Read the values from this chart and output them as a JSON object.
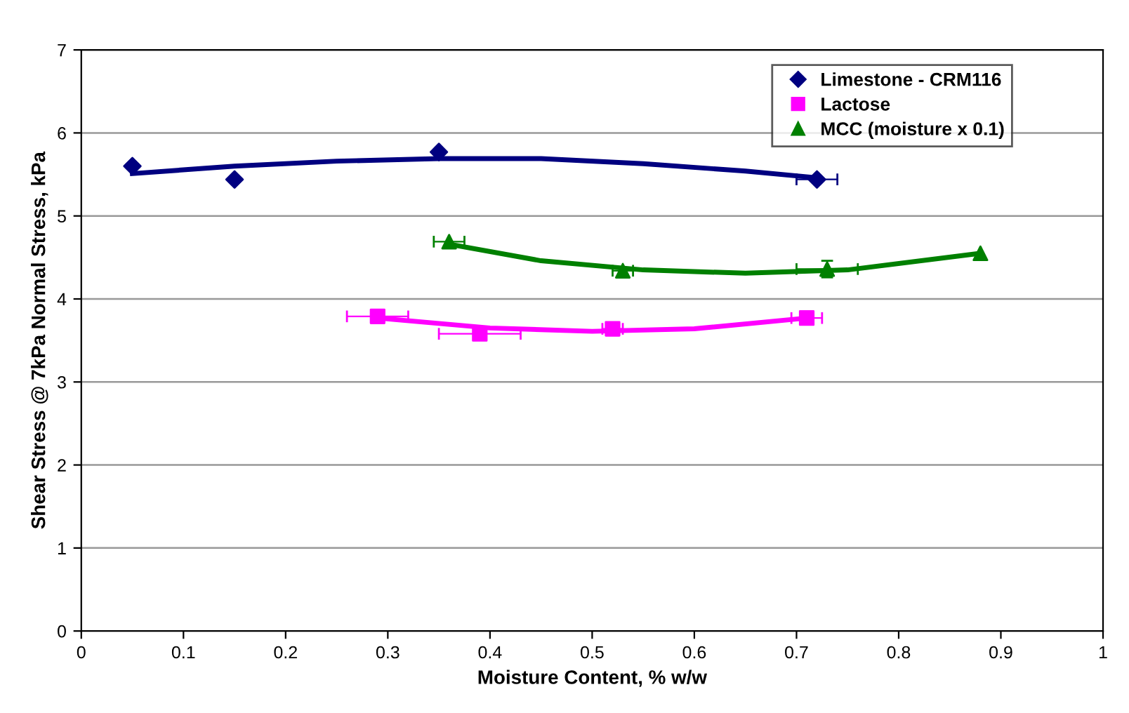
{
  "chart_data": {
    "type": "scatter",
    "xlabel": "Moisture Content, % w/w",
    "ylabel": "Shear Stress @ 7kPa Normal Stress, kPa",
    "xlim": [
      0,
      1
    ],
    "ylim": [
      0,
      7
    ],
    "xticks": [
      0,
      0.1,
      0.2,
      0.3,
      0.4,
      0.5,
      0.6,
      0.7,
      0.8,
      0.9,
      1
    ],
    "yticks": [
      0,
      1,
      2,
      3,
      4,
      5,
      6,
      7
    ],
    "grid": "y",
    "legend": "top right",
    "series": [
      {
        "name": "Limestone - CRM116",
        "color": "#000080",
        "marker": "diamond",
        "x": [
          0.05,
          0.15,
          0.35,
          0.72
        ],
        "values": [
          5.6,
          5.44,
          5.77,
          5.44
        ],
        "xerrors": [
          null,
          null,
          null,
          0.02
        ]
      },
      {
        "name": "Lactose",
        "color": "#ff00ff",
        "marker": "square",
        "x": [
          0.29,
          0.39,
          0.52,
          0.71
        ],
        "values": [
          3.79,
          3.58,
          3.64,
          3.77
        ],
        "xerrors": [
          0.03,
          0.04,
          0.01,
          0.015
        ]
      },
      {
        "name": "MCC (moisture x 0.1)",
        "color": "#008000",
        "marker": "triangle",
        "x": [
          0.36,
          0.53,
          0.73,
          0.88
        ],
        "values": [
          4.69,
          4.34,
          4.36,
          4.55
        ],
        "xerrors": [
          0.015,
          0.01,
          0.03,
          null
        ],
        "errors": [
          null,
          null,
          0.1,
          null
        ]
      },
      {
        "type": "line",
        "color": "#000080",
        "marker": "none",
        "x": [
          0.05,
          0.15,
          0.25,
          0.35,
          0.45,
          0.55,
          0.65,
          0.72
        ],
        "values": [
          5.51,
          5.6,
          5.66,
          5.69,
          5.69,
          5.63,
          5.54,
          5.46
        ]
      },
      {
        "type": "line",
        "color": "#ff00ff",
        "marker": "none",
        "x": [
          0.29,
          0.4,
          0.5,
          0.6,
          0.71
        ],
        "values": [
          3.77,
          3.65,
          3.61,
          3.64,
          3.77
        ]
      },
      {
        "type": "line",
        "color": "#008000",
        "marker": "none",
        "x": [
          0.36,
          0.45,
          0.55,
          0.65,
          0.75,
          0.88
        ],
        "values": [
          4.66,
          4.46,
          4.35,
          4.31,
          4.35,
          4.55
        ]
      }
    ]
  }
}
